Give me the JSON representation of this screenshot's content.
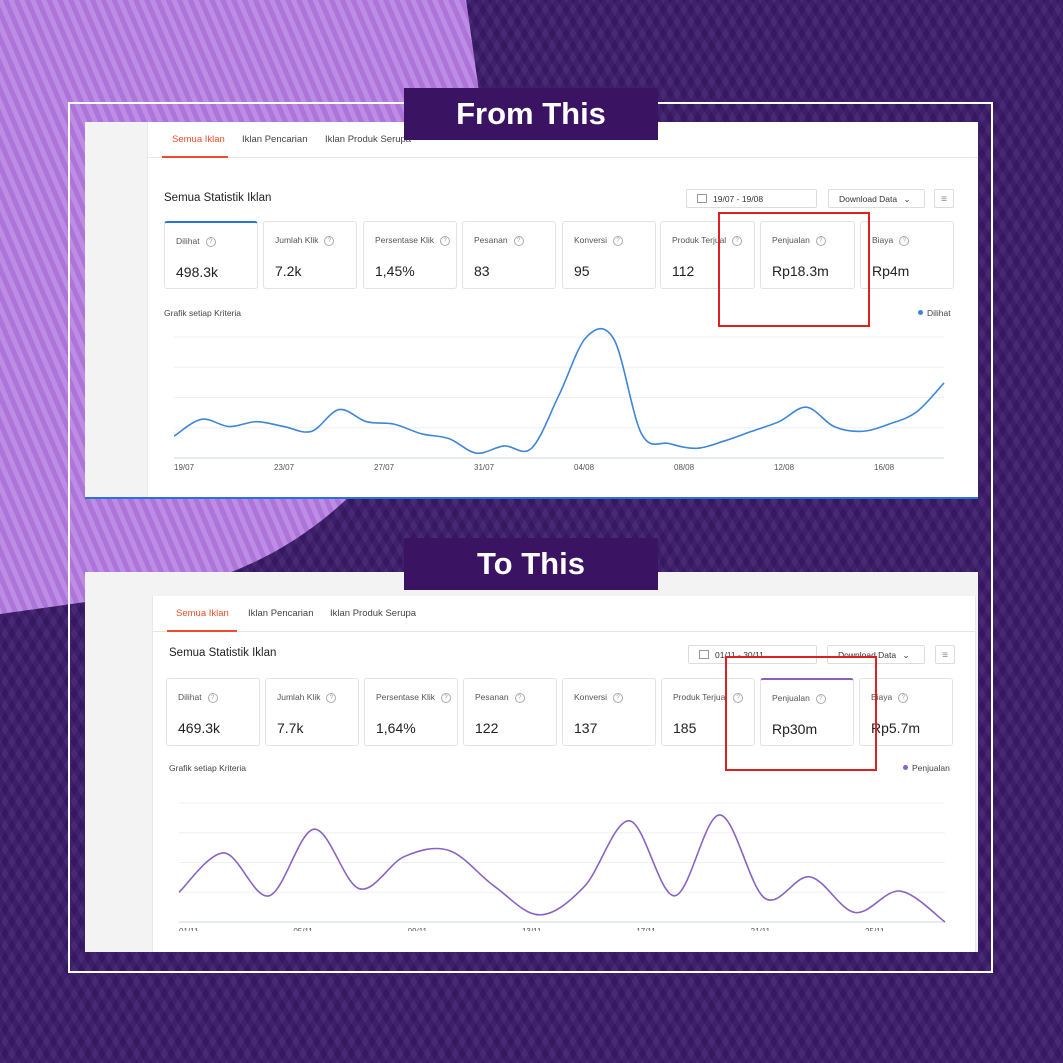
{
  "labels": {
    "from": "From This",
    "to": "To This"
  },
  "from": {
    "tabs": [
      "Semua Iklan",
      "Iklan Pencarian",
      "Iklan Produk Serupa"
    ],
    "section_title": "Semua Statistik Iklan",
    "date_range": "19/07 - 19/08",
    "download_label": "Download Data",
    "metrics": [
      {
        "name": "Dilihat",
        "value": "498.3k"
      },
      {
        "name": "Jumlah Klik",
        "value": "7.2k"
      },
      {
        "name": "Persentase Klik",
        "value": "1,45%"
      },
      {
        "name": "Pesanan",
        "value": "83"
      },
      {
        "name": "Konversi",
        "value": "95"
      },
      {
        "name": "Produk Terjual",
        "value": "112"
      },
      {
        "name": "Penjualan",
        "value": "Rp18.3m"
      },
      {
        "name": "Biaya",
        "value": "Rp4m"
      }
    ],
    "chart_title": "Grafik setiap Kriteria",
    "legend": "Dilihat",
    "colors": {
      "line": "#3d86d6",
      "selected": "#2673dd"
    }
  },
  "to": {
    "tabs": [
      "Semua Iklan",
      "Iklan Pencarian",
      "Iklan Produk Serupa"
    ],
    "section_title": "Semua Statistik Iklan",
    "date_range": "01/11 - 30/11",
    "download_label": "Download Data",
    "metrics": [
      {
        "name": "Dilihat",
        "value": "469.3k"
      },
      {
        "name": "Jumlah Klik",
        "value": "7.7k"
      },
      {
        "name": "Persentase Klik",
        "value": "1,64%"
      },
      {
        "name": "Pesanan",
        "value": "122"
      },
      {
        "name": "Konversi",
        "value": "137"
      },
      {
        "name": "Produk Terjual",
        "value": "185"
      },
      {
        "name": "Penjualan",
        "value": "Rp30m"
      },
      {
        "name": "Biaya",
        "value": "Rp5.7m"
      }
    ],
    "chart_title": "Grafik setiap Kriteria",
    "legend": "Penjualan",
    "colors": {
      "line": "#8a63c2",
      "selected": "#8b5fbf"
    }
  },
  "chart_data": [
    {
      "type": "line",
      "series": [
        {
          "name": "Dilihat",
          "values": [
            0.18,
            0.32,
            0.26,
            0.3,
            0.26,
            0.22,
            0.4,
            0.3,
            0.28,
            0.2,
            0.16,
            0.04,
            0.1,
            0.08,
            0.52,
            1.0,
            0.98,
            0.2,
            0.12,
            0.08,
            0.14,
            0.22,
            0.3,
            0.42,
            0.26,
            0.22,
            0.28,
            0.38,
            0.62
          ]
        }
      ],
      "x_tick_labels": [
        "19/07",
        "23/07",
        "27/07",
        "31/07",
        "04/08",
        "08/08",
        "12/08",
        "16/08"
      ]
    },
    {
      "type": "line",
      "series": [
        {
          "name": "Penjualan",
          "values": [
            0.25,
            0.58,
            0.22,
            0.78,
            0.28,
            0.55,
            0.6,
            0.3,
            0.06,
            0.3,
            0.85,
            0.22,
            0.9,
            0.2,
            0.38,
            0.08,
            0.26,
            0.0
          ]
        }
      ],
      "x_tick_labels": [
        "01/11",
        "05/11",
        "09/11",
        "13/11",
        "17/11",
        "21/11",
        "25/11"
      ]
    }
  ]
}
